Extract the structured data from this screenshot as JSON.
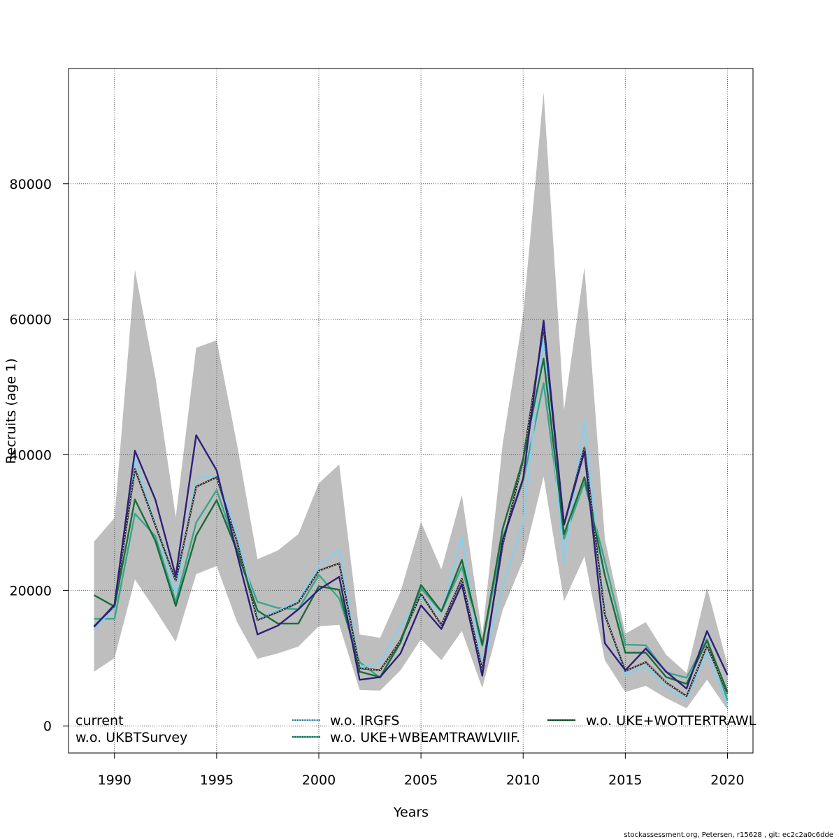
{
  "chart_data": {
    "type": "line",
    "title": "",
    "xlabel": "Years",
    "ylabel": "Recruits (age 1)",
    "xlim": [
      1987.75,
      2021.25
    ],
    "ylim": [
      -4000,
      97000
    ],
    "x_ticks": [
      1990,
      1995,
      2000,
      2005,
      2010,
      2015,
      2020
    ],
    "y_ticks": [
      0,
      20000,
      40000,
      60000,
      80000
    ],
    "grid": true,
    "grid_style": "dotted",
    "legend_position": "bottom",
    "x": [
      1989,
      1990,
      1991,
      1992,
      1993,
      1994,
      1995,
      1996,
      1997,
      1998,
      1999,
      2000,
      2001,
      2002,
      2003,
      2004,
      2005,
      2006,
      2007,
      2008,
      2009,
      2010,
      2011,
      2012,
      2013,
      2014,
      2015,
      2016,
      2017,
      2018,
      2019,
      2020
    ],
    "confidence_band": {
      "color": "#bebebe",
      "upper": [
        27200,
        30700,
        67300,
        51500,
        30800,
        55800,
        56900,
        41500,
        24600,
        25900,
        28300,
        35800,
        38600,
        13500,
        13000,
        19800,
        30100,
        23100,
        34100,
        13400,
        41600,
        60600,
        93500,
        46600,
        67700,
        27600,
        13600,
        15300,
        10500,
        7800,
        20400,
        9000
      ],
      "lower": [
        8000,
        10000,
        21600,
        17100,
        12400,
        22400,
        23600,
        15300,
        9900,
        10700,
        11700,
        14700,
        14900,
        5300,
        5200,
        8200,
        12800,
        9700,
        14000,
        5600,
        17100,
        24400,
        36800,
        18400,
        25000,
        9700,
        5000,
        5900,
        4100,
        2600,
        6800,
        2400
      ]
    },
    "series": [
      {
        "name": "current",
        "color": "#2b2b2b",
        "dash": "none",
        "overlay_dash_color": "#ffffff",
        "values": [
          14700,
          17700,
          37900,
          29600,
          21400,
          35300,
          36700,
          27100,
          15600,
          16800,
          18200,
          22900,
          24000,
          8500,
          8200,
          12600,
          19500,
          14900,
          21700,
          8200,
          26700,
          39300,
          58800,
          29700,
          41100,
          16400,
          8100,
          9400,
          6400,
          4400,
          11800,
          4800
        ]
      },
      {
        "name": "w.o. IRGFS",
        "color": "#87ceeb",
        "dash": "none",
        "values": [
          14200,
          17500,
          39500,
          29800,
          19600,
          36600,
          36900,
          28500,
          16000,
          17000,
          18600,
          23700,
          26000,
          8700,
          9300,
          14800,
          19000,
          16600,
          27900,
          8300,
          20700,
          30000,
          57500,
          24100,
          45100,
          16600,
          7500,
          8800,
          5500,
          3900,
          10800,
          3100
        ]
      },
      {
        "name": "w.o. UKE+WOTTERTRAWL",
        "color": "#1a6b3a",
        "dash": "none",
        "values": [
          19300,
          17600,
          33400,
          27300,
          17700,
          28100,
          33300,
          25800,
          17000,
          15100,
          15100,
          20600,
          20100,
          8000,
          7200,
          12300,
          20800,
          16900,
          24500,
          12000,
          29100,
          39400,
          54200,
          28300,
          36700,
          22200,
          10800,
          10800,
          7200,
          6200,
          12600,
          5000
        ]
      },
      {
        "name": "w.o. UKBTSurvey",
        "color": "#2c1f7a",
        "dash": "none",
        "values": [
          14600,
          17900,
          40600,
          33400,
          22100,
          42900,
          37700,
          25300,
          13500,
          14800,
          17200,
          20100,
          22000,
          6800,
          7200,
          10700,
          17800,
          14300,
          20900,
          7400,
          27400,
          36500,
          59800,
          29700,
          40500,
          12200,
          8200,
          11400,
          8000,
          5500,
          14000,
          7500
        ]
      },
      {
        "name": "w.o. UKE+WBEAMTRAWLVIIF.",
        "color": "#3aa68a",
        "dash": "none",
        "values": [
          15800,
          15800,
          31300,
          28000,
          18300,
          30000,
          34800,
          26000,
          18300,
          17400,
          17200,
          22300,
          18800,
          9400,
          7100,
          12700,
          20300,
          16800,
          23500,
          11800,
          27800,
          36100,
          50600,
          27600,
          35900,
          24300,
          12000,
          11900,
          7900,
          7100,
          12800,
          3800
        ]
      }
    ],
    "legend": {
      "entries": [
        "current",
        "w.o. UKBTSurvey",
        "w.o. IRGFS",
        "w.o. UKE+WBEAMTRAWLVIIF.",
        "w.o. UKE+WOTTERTRAWL"
      ]
    }
  },
  "footer": "stockassessment.org, Petersen, r15628 , git: ec2c2a0c6dde"
}
